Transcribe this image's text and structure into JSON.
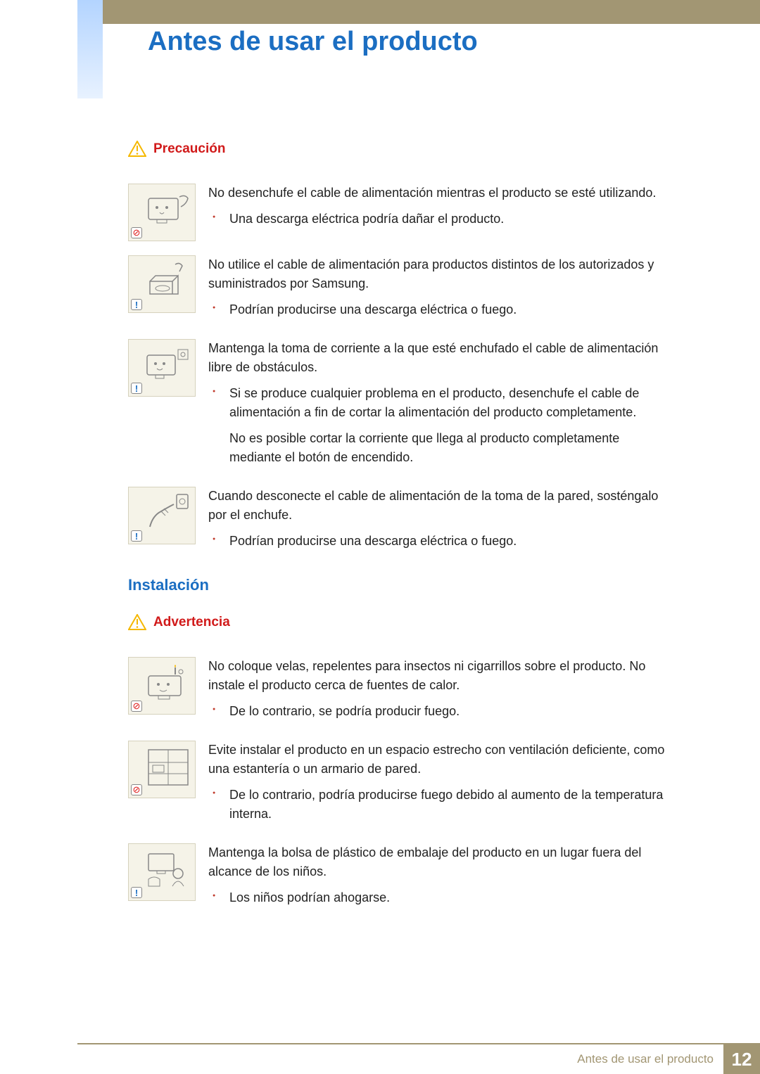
{
  "colors": {
    "accent_blue": "#1b6ec2",
    "header_bar": "#a29673",
    "warning_red": "#d11a1a",
    "illustration_bg": "#f5f3e8",
    "bullet_red": "#c0392b"
  },
  "page": {
    "title": "Antes de usar el producto",
    "footer_text": "Antes de usar el producto",
    "page_number": "12"
  },
  "section_a": {
    "heading": "Precaución",
    "heading_color": "#d11a1a",
    "items": [
      {
        "badge_type": "prohibit",
        "lead": "No desenchufe el cable de alimentación mientras el producto se esté utilizando.",
        "bullets": [
          {
            "text": "Una descarga eléctrica podría dañar el producto."
          }
        ]
      },
      {
        "badge_type": "info",
        "lead": "No utilice el cable de alimentación para productos distintos de los autorizados y suministrados por Samsung.",
        "bullets": [
          {
            "text": "Podrían producirse una descarga eléctrica o fuego."
          }
        ]
      },
      {
        "badge_type": "info",
        "lead": "Mantenga la toma de corriente a la que esté enchufado el cable de alimentación libre de obstáculos.",
        "bullets": [
          {
            "text": "Si se produce cualquier problema en el producto, desenchufe el cable de alimentación a fin de cortar la alimentación del producto completamente.",
            "sub": "No es posible cortar la corriente que llega al producto completamente mediante el botón de encendido."
          }
        ]
      },
      {
        "badge_type": "info",
        "lead": "Cuando desconecte el cable de alimentación de la toma de la pared, sosténgalo por el enchufe.",
        "bullets": [
          {
            "text": "Podrían producirse una descarga eléctrica o fuego."
          }
        ]
      }
    ]
  },
  "section_b": {
    "title": "Instalación",
    "heading": "Advertencia",
    "heading_color": "#d11a1a",
    "items": [
      {
        "badge_type": "prohibit",
        "lead": "No coloque velas, repelentes para insectos ni cigarrillos sobre el producto. No instale el producto cerca de fuentes de calor.",
        "bullets": [
          {
            "text": "De lo contrario, se podría producir fuego."
          }
        ]
      },
      {
        "badge_type": "prohibit",
        "lead": "Evite instalar el producto en un espacio estrecho con ventilación deficiente, como una estantería o un armario de pared.",
        "bullets": [
          {
            "text": "De lo contrario, podría producirse fuego debido al aumento de la temperatura interna."
          }
        ]
      },
      {
        "badge_type": "info",
        "lead": "Mantenga la bolsa de plástico de embalaje del producto en un lugar fuera del alcance de los niños.",
        "bullets": [
          {
            "text": "Los niños podrían ahogarse."
          }
        ]
      }
    ]
  }
}
